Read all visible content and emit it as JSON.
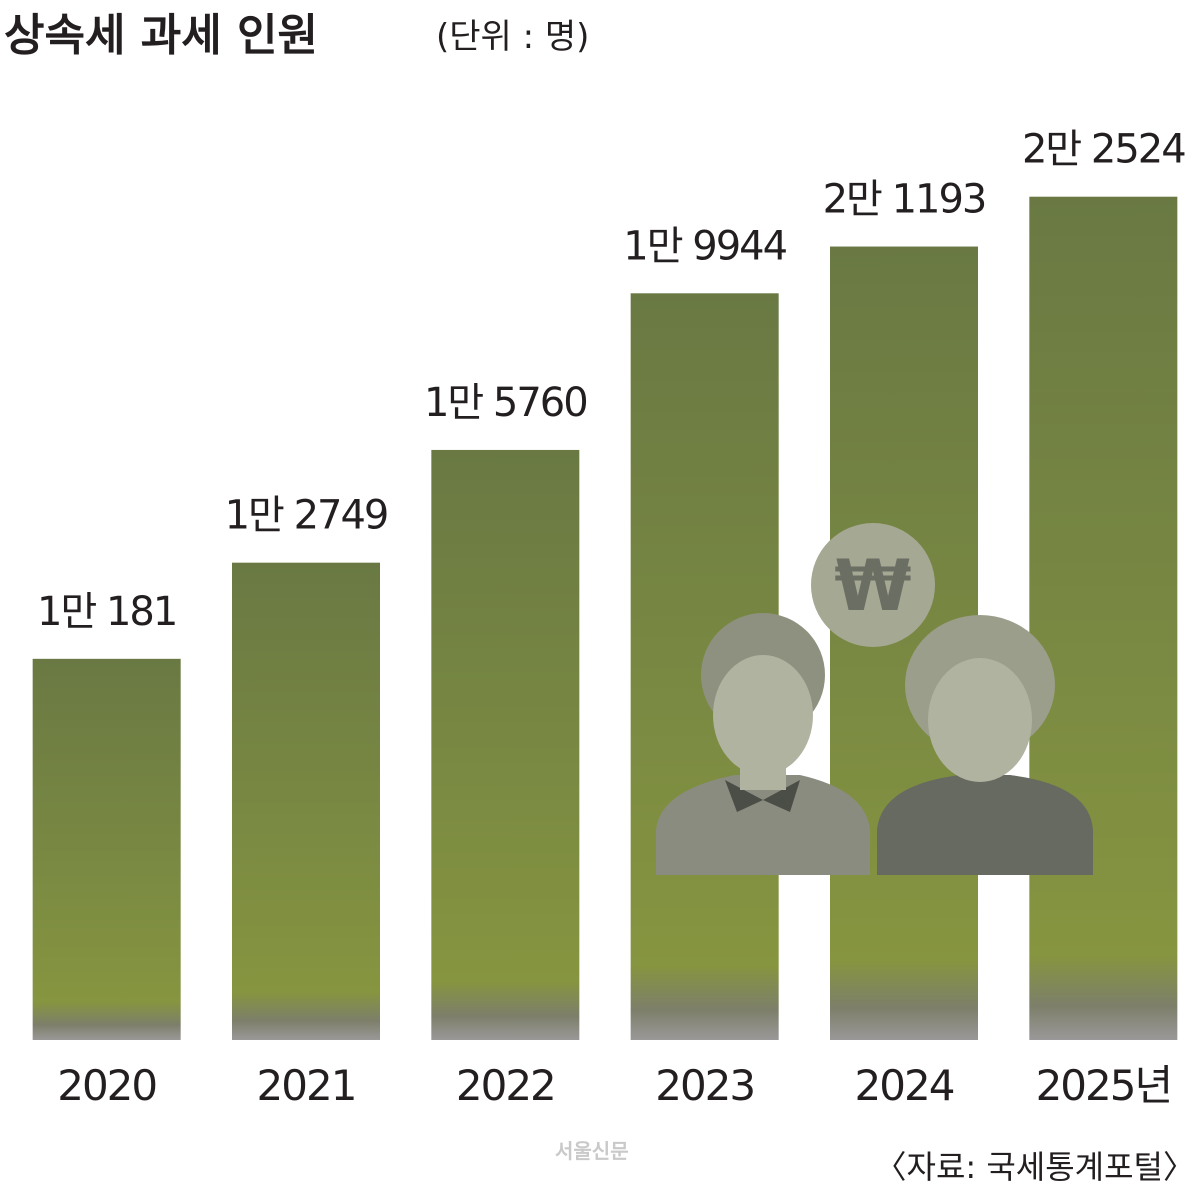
{
  "chart_data": {
    "type": "bar",
    "title": "상속세 과세 인원",
    "subtitle": "(단위 : 명)",
    "categories": [
      "2020",
      "2021",
      "2022",
      "2023",
      "2024",
      "2025년"
    ],
    "values": [
      10181,
      12749,
      15760,
      19944,
      21193,
      22524
    ],
    "value_labels": [
      "1만 181",
      "1만 2749",
      "1만 5760",
      "1만 9944",
      "2만 1193",
      "2만 2524"
    ],
    "color": "#7a8a42",
    "ylim": [
      0,
      25000
    ],
    "source": "〈자료: 국세통계포털〉",
    "watermark": "서울신문"
  }
}
